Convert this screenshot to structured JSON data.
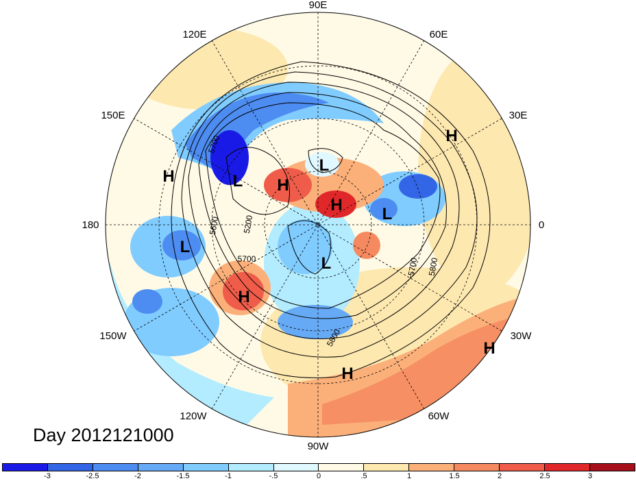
{
  "map": {
    "longitude_labels": [
      "90E",
      "60E",
      "30E",
      "0",
      "30W",
      "60W",
      "90W",
      "120W",
      "150W",
      "180",
      "150E",
      "120E"
    ],
    "contour_labels": [
      "5700",
      "5600",
      "5200",
      "5700",
      "5700",
      "5800",
      "5800"
    ],
    "pressure_centers": [
      "L",
      "L",
      "L",
      "L",
      "L",
      "H",
      "H",
      "H",
      "H",
      "H",
      "H",
      "H"
    ]
  },
  "day_label": "Day 2012121000",
  "colorbar": {
    "colors": [
      "#1a1ae6",
      "#3366e6",
      "#4d8cf0",
      "#66aaf5",
      "#80ccff",
      "#b3ecff",
      "#e0f8ff",
      "#fffae6",
      "#fde8b0",
      "#fbb07a",
      "#f58a60",
      "#ef5c4a",
      "#e0282a",
      "#a50f1a"
    ],
    "labels": [
      "-3",
      "-2.5",
      "-2",
      "-1.5",
      "-1",
      "-.5",
      "0",
      ".5",
      "1",
      "1.5",
      "2",
      "2.5",
      "3"
    ]
  }
}
